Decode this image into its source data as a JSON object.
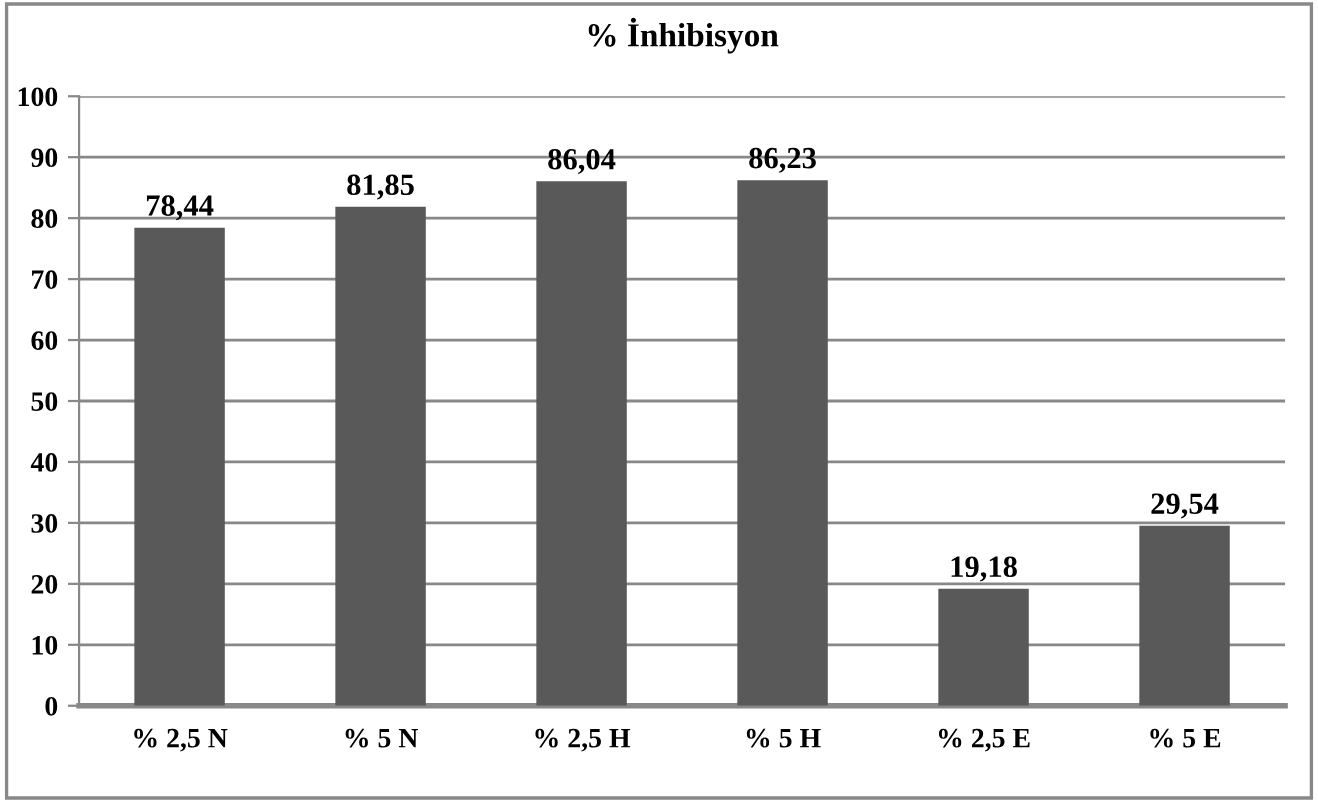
{
  "chart_data": {
    "type": "bar",
    "title": "% İnhibisyon",
    "categories": [
      "% 2,5 N",
      "% 5 N",
      "% 2,5 H",
      "% 5 H",
      "% 2,5 E",
      "% 5 E"
    ],
    "values": [
      78.44,
      81.85,
      86.04,
      86.23,
      19.18,
      29.54
    ],
    "value_labels": [
      "78,44",
      "81,85",
      "86,04",
      "86,23",
      "19,18",
      "29,54"
    ],
    "color": "#595959",
    "ylim": [
      0,
      100
    ],
    "yticks": [
      0,
      10,
      20,
      30,
      40,
      50,
      60,
      70,
      80,
      90,
      100
    ],
    "grid": "y",
    "legend": false
  }
}
